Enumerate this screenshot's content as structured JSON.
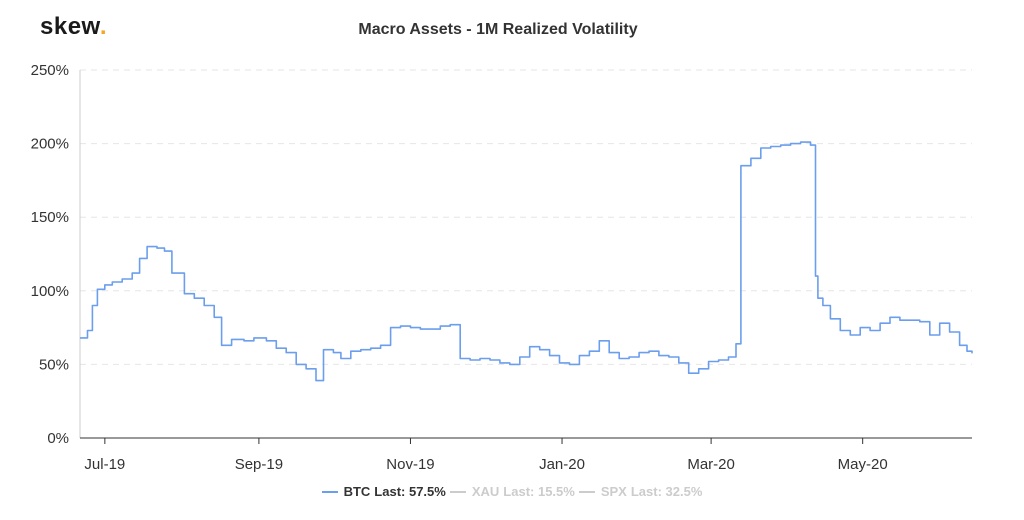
{
  "header": {
    "logo_text": "skew",
    "logo_dot": "."
  },
  "chart_data": {
    "type": "line",
    "title": "Macro Assets - 1M Realized Volatility",
    "xlabel": "",
    "ylabel": "",
    "ylim": [
      0,
      250
    ],
    "yticks": [
      "0%",
      "50%",
      "100%",
      "150%",
      "200%",
      "250%"
    ],
    "xticks": [
      "Jul-19",
      "Sep-19",
      "Nov-19",
      "Jan-20",
      "Mar-20",
      "May-20"
    ],
    "grid": "horizontal dashed",
    "legend_position": "bottom-center",
    "series": [
      {
        "name": "BTC",
        "legend_text": "Last: 57.5%",
        "color": "#6b9eed",
        "visible": true,
        "x": [
          "2019-06-21",
          "2019-06-24",
          "2019-06-26",
          "2019-06-28",
          "2019-07-01",
          "2019-07-04",
          "2019-07-08",
          "2019-07-12",
          "2019-07-15",
          "2019-07-18",
          "2019-07-22",
          "2019-07-25",
          "2019-07-28",
          "2019-08-02",
          "2019-08-06",
          "2019-08-10",
          "2019-08-14",
          "2019-08-17",
          "2019-08-21",
          "2019-08-26",
          "2019-08-30",
          "2019-09-04",
          "2019-09-08",
          "2019-09-12",
          "2019-09-16",
          "2019-09-20",
          "2019-09-24",
          "2019-09-27",
          "2019-10-01",
          "2019-10-04",
          "2019-10-08",
          "2019-10-12",
          "2019-10-16",
          "2019-10-20",
          "2019-10-24",
          "2019-10-28",
          "2019-11-01",
          "2019-11-05",
          "2019-11-09",
          "2019-11-13",
          "2019-11-17",
          "2019-11-21",
          "2019-11-25",
          "2019-11-29",
          "2019-12-03",
          "2019-12-07",
          "2019-12-11",
          "2019-12-15",
          "2019-12-19",
          "2019-12-23",
          "2019-12-27",
          "2019-12-31",
          "2020-01-04",
          "2020-01-08",
          "2020-01-12",
          "2020-01-16",
          "2020-01-20",
          "2020-01-24",
          "2020-01-28",
          "2020-02-01",
          "2020-02-05",
          "2020-02-09",
          "2020-02-13",
          "2020-02-17",
          "2020-02-21",
          "2020-02-25",
          "2020-02-29",
          "2020-03-04",
          "2020-03-08",
          "2020-03-11",
          "2020-03-13",
          "2020-03-17",
          "2020-03-21",
          "2020-03-25",
          "2020-03-29",
          "2020-04-02",
          "2020-04-06",
          "2020-04-10",
          "2020-04-12",
          "2020-04-13",
          "2020-04-15",
          "2020-04-18",
          "2020-04-22",
          "2020-04-26",
          "2020-04-30",
          "2020-05-04",
          "2020-05-08",
          "2020-05-12",
          "2020-05-16",
          "2020-05-20",
          "2020-05-24",
          "2020-05-28",
          "2020-06-01",
          "2020-06-05",
          "2020-06-09",
          "2020-06-12",
          "2020-06-14"
        ],
        "values": [
          68,
          73,
          90,
          101,
          104,
          106,
          108,
          112,
          122,
          130,
          129,
          127,
          112,
          98,
          95,
          90,
          82,
          63,
          67,
          66,
          68,
          66,
          61,
          58,
          50,
          47,
          39,
          60,
          58,
          54,
          59,
          60,
          61,
          63,
          75,
          76,
          75,
          74,
          74,
          76,
          77,
          54,
          53,
          54,
          53,
          51,
          50,
          55,
          62,
          60,
          56,
          51,
          50,
          56,
          59,
          66,
          58,
          54,
          55,
          58,
          59,
          56,
          55,
          51,
          44,
          47,
          52,
          53,
          55,
          64,
          185,
          190,
          197,
          198,
          199,
          200,
          201,
          199,
          110,
          95,
          90,
          81,
          73,
          70,
          75,
          73,
          78,
          82,
          80,
          80,
          79,
          70,
          78,
          72,
          63,
          59,
          57.5
        ]
      },
      {
        "name": "XAU",
        "legend_text": "Last: 15.5%",
        "color": "#cccccc",
        "visible": false
      },
      {
        "name": "SPX",
        "legend_text": "Last: 32.5%",
        "color": "#cccccc",
        "visible": false
      }
    ]
  }
}
